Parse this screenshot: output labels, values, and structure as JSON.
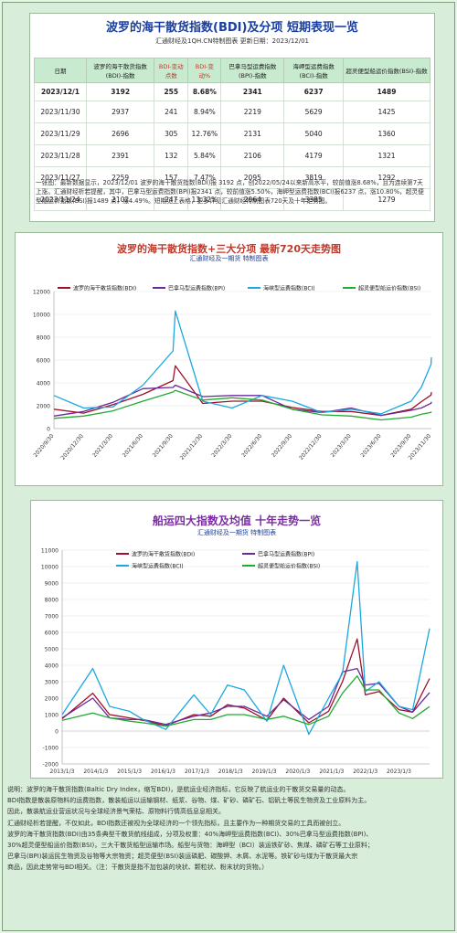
{
  "table": {
    "title": "波罗的海干散货指数(BDI)及分项 短期表现一览",
    "subtitle": "汇通财经及1QH.CN特制图表  更新日期：2023/12/01",
    "headers": [
      "日期",
      "波罗的海干散货指数(BDI)-指数",
      "BDI-变动点数",
      "BDI-变动%",
      "巴拿马型运费指数(BPI)-指数",
      "海岬型运费指数(BCI)-指数",
      "超灵便型船运价指数(BSI)-指数"
    ],
    "rows": [
      [
        "2023/12/1",
        "3192",
        "255",
        "8.68%",
        "2341",
        "6237",
        "1489"
      ],
      [
        "2023/11/30",
        "2937",
        "241",
        "8.94%",
        "2219",
        "5629",
        "1425"
      ],
      [
        "2023/11/29",
        "2696",
        "305",
        "12.76%",
        "2131",
        "5040",
        "1360"
      ],
      [
        "2023/11/28",
        "2391",
        "132",
        "5.84%",
        "2106",
        "4179",
        "1321"
      ],
      [
        "2023/11/27",
        "2259",
        "157",
        "7.47%",
        "2095",
        "3819",
        "1292"
      ],
      [
        "2023/11/24",
        "2102",
        "247",
        "13.32%",
        "2064",
        "3385",
        "1279"
      ]
    ],
    "note": "一张图：最新数据显示，2023/12/01 波罗的海干散货指数(BDI)报 3192 点，创2022/05/24以来新高水平，较前值涨8.68%，且为连续第7天上涨。汇通财经析若提醒，其中，巴拿马型运费指数(BPI)报2341 点，较前值涨5.50%，海岬型运费指数(BCI)报6237 点，涨10.80%，超灵便型船运价指数(BSI)报1489 点，涨4.49%。短期见上表格，更多详见汇通财经特制图表720天及十年走势图。"
  },
  "colors": {
    "bdi": "#a0102a",
    "bpi": "#6a2a9a",
    "bci": "#1aa8e0",
    "bsi": "#22aa33"
  },
  "chart_data": [
    {
      "type": "line",
      "title": "波罗的海干散货指数+三大分项 最新720天走势图",
      "subtitle": "汇通财经及一期货 特制图表",
      "ylim": [
        0,
        12000
      ],
      "yticks": [
        0,
        2000,
        4000,
        6000,
        8000,
        10000,
        12000
      ],
      "xtick_labels": [
        "2020/9/30",
        "2020/12/30",
        "2021/3/30",
        "2021/6/30",
        "2021/9/30",
        "2021/12/30",
        "2022/3/30",
        "2022/6/30",
        "2022/9/30",
        "2022/12/30",
        "2023/3/30",
        "2023/6/30",
        "2023/9/30",
        "2023/11/30"
      ],
      "x": [
        "2020/9/30",
        "2020/12/30",
        "2021/3/30",
        "2021/6/30",
        "2021/9/30",
        "2021/10/7",
        "2021/12/30",
        "2022/3/30",
        "2022/6/30",
        "2022/9/30",
        "2022/12/30",
        "2023/3/30",
        "2023/6/30",
        "2023/9/30",
        "2023/10/31",
        "2023/11/30",
        "2023/12/1"
      ],
      "series": [
        {
          "name": "波罗的海干散货指数(BDI)",
          "key": "bdi",
          "values": [
            1700,
            1350,
            2100,
            3000,
            4200,
            5500,
            2200,
            2400,
            2400,
            1850,
            1500,
            1500,
            1150,
            1700,
            2350,
            2937,
            3192
          ]
        },
        {
          "name": "巴拿马型运费指数(BPI)",
          "key": "bpi",
          "values": [
            1100,
            1500,
            2300,
            3500,
            3600,
            3800,
            2800,
            2900,
            2900,
            1700,
            1400,
            1800,
            1150,
            1600,
            1800,
            2219,
            2341
          ]
        },
        {
          "name": "海峡型运费指数(BCI)",
          "key": "bci",
          "values": [
            2900,
            1800,
            1900,
            3800,
            6800,
            10300,
            2400,
            1800,
            2900,
            2400,
            1400,
            1700,
            1300,
            2400,
            3600,
            5629,
            6237
          ]
        },
        {
          "name": "超灵便型船运价指数(BSI)",
          "key": "bsi",
          "values": [
            900,
            1100,
            1550,
            2400,
            3200,
            3350,
            2500,
            2700,
            2500,
            1700,
            1200,
            1100,
            760,
            1000,
            1250,
            1425,
            1489
          ]
        }
      ]
    },
    {
      "type": "line",
      "title": "船运四大指数及均值 十年走势一览",
      "subtitle": "汇通财经及一期货 特制图表",
      "ylim": [
        -2000,
        11000
      ],
      "yticks": [
        -2000,
        -1000,
        0,
        1000,
        2000,
        3000,
        4000,
        5000,
        6000,
        7000,
        8000,
        9000,
        10000,
        11000
      ],
      "xtick_labels": [
        "2013/1/3",
        "2014/1/3",
        "2015/1/3",
        "2016/1/3",
        "2017/1/3",
        "2018/1/3",
        "2019/1/3",
        "2020/1/3",
        "2021/1/3",
        "2022/1/3",
        "2023/1/3"
      ],
      "x": [
        "2013/1/3",
        "2013/12/1",
        "2014/6/1",
        "2015/1/3",
        "2015/6/1",
        "2016/2/1",
        "2016/12/1",
        "2017/6/1",
        "2017/12/1",
        "2018/6/1",
        "2019/2/1",
        "2019/8/1",
        "2020/5/1",
        "2020/12/1",
        "2021/5/1",
        "2021/10/7",
        "2022/1/3",
        "2022/6/1",
        "2023/1/3",
        "2023/6/1",
        "2023/12/1"
      ],
      "series": [
        {
          "name": "波罗的海干散货指数(BDI)",
          "key": "bdi",
          "values": [
            750,
            2300,
            1000,
            800,
            650,
            320,
            1000,
            900,
            1600,
            1400,
            650,
            2000,
            500,
            1200,
            3000,
            5600,
            2200,
            2400,
            1300,
            1150,
            3192
          ]
        },
        {
          "name": "巴拿马型运费指数(BPI)",
          "key": "bpi",
          "values": [
            800,
            2000,
            800,
            700,
            700,
            400,
            900,
            1100,
            1500,
            1500,
            900,
            1900,
            700,
            1500,
            3600,
            3800,
            2800,
            2900,
            1500,
            1150,
            2341
          ]
        },
        {
          "name": "海峡型运费指数(BCI)",
          "key": "bci",
          "values": [
            1000,
            3800,
            1500,
            1200,
            700,
            100,
            2200,
            1000,
            2800,
            2500,
            600,
            4000,
            -200,
            2000,
            3500,
            10300,
            2400,
            3000,
            1500,
            1300,
            6237
          ]
        },
        {
          "name": "超灵便型船运价指数(BSI)",
          "key": "bsi",
          "values": [
            650,
            1100,
            800,
            600,
            500,
            300,
            700,
            700,
            1000,
            1000,
            700,
            900,
            400,
            900,
            2300,
            3350,
            2500,
            2500,
            1100,
            760,
            1489
          ]
        }
      ]
    }
  ],
  "footnote": [
    "说明：波罗的海干散货指数(Baltic Dry Index，缩写BDI)，是航运业经济指标，它反映了航运业的干散货交易量的动态。",
    "BDI指数是散装原物料的运费指数，散装船运以运输钢材、纸浆、谷物、煤、矿砂、磷矿石、铝矾土等民生物资及工业原料为主。",
    "因此，散装航运业营运状况与全球经济景气荣枯、原物料行情高低息息相关。",
    "汇通财经析若提醒，不仅如此，BDI指数还被视为全球经济的一个领先指标，且主要作为一种期货交易的工具而被创立。",
    "波罗的海干散货指数(BDI)由35条典型干散货航线组成，分项及权重：40%海岬型运费指数(BCI)、30%巴拿马型运费指数(BPI)、",
    "30%超灵便型船运价指数(BSI)，三大干散货船型运输市场。船型与货物：海岬型（BCI）装运铁矿砂、焦煤、磷矿石等工业原料；",
    "巴拿马(BPI)装运民生物资及谷物等大宗物资；超灵便型(BSI)装运磷肥、碳酸钾、木屑、水泥等。铁矿砂与煤为干散货最大宗",
    "商品，因此走势常与BDI相关。（注：干散货是指不加包装的块状、颗粒状、粉末状的货物。）"
  ]
}
